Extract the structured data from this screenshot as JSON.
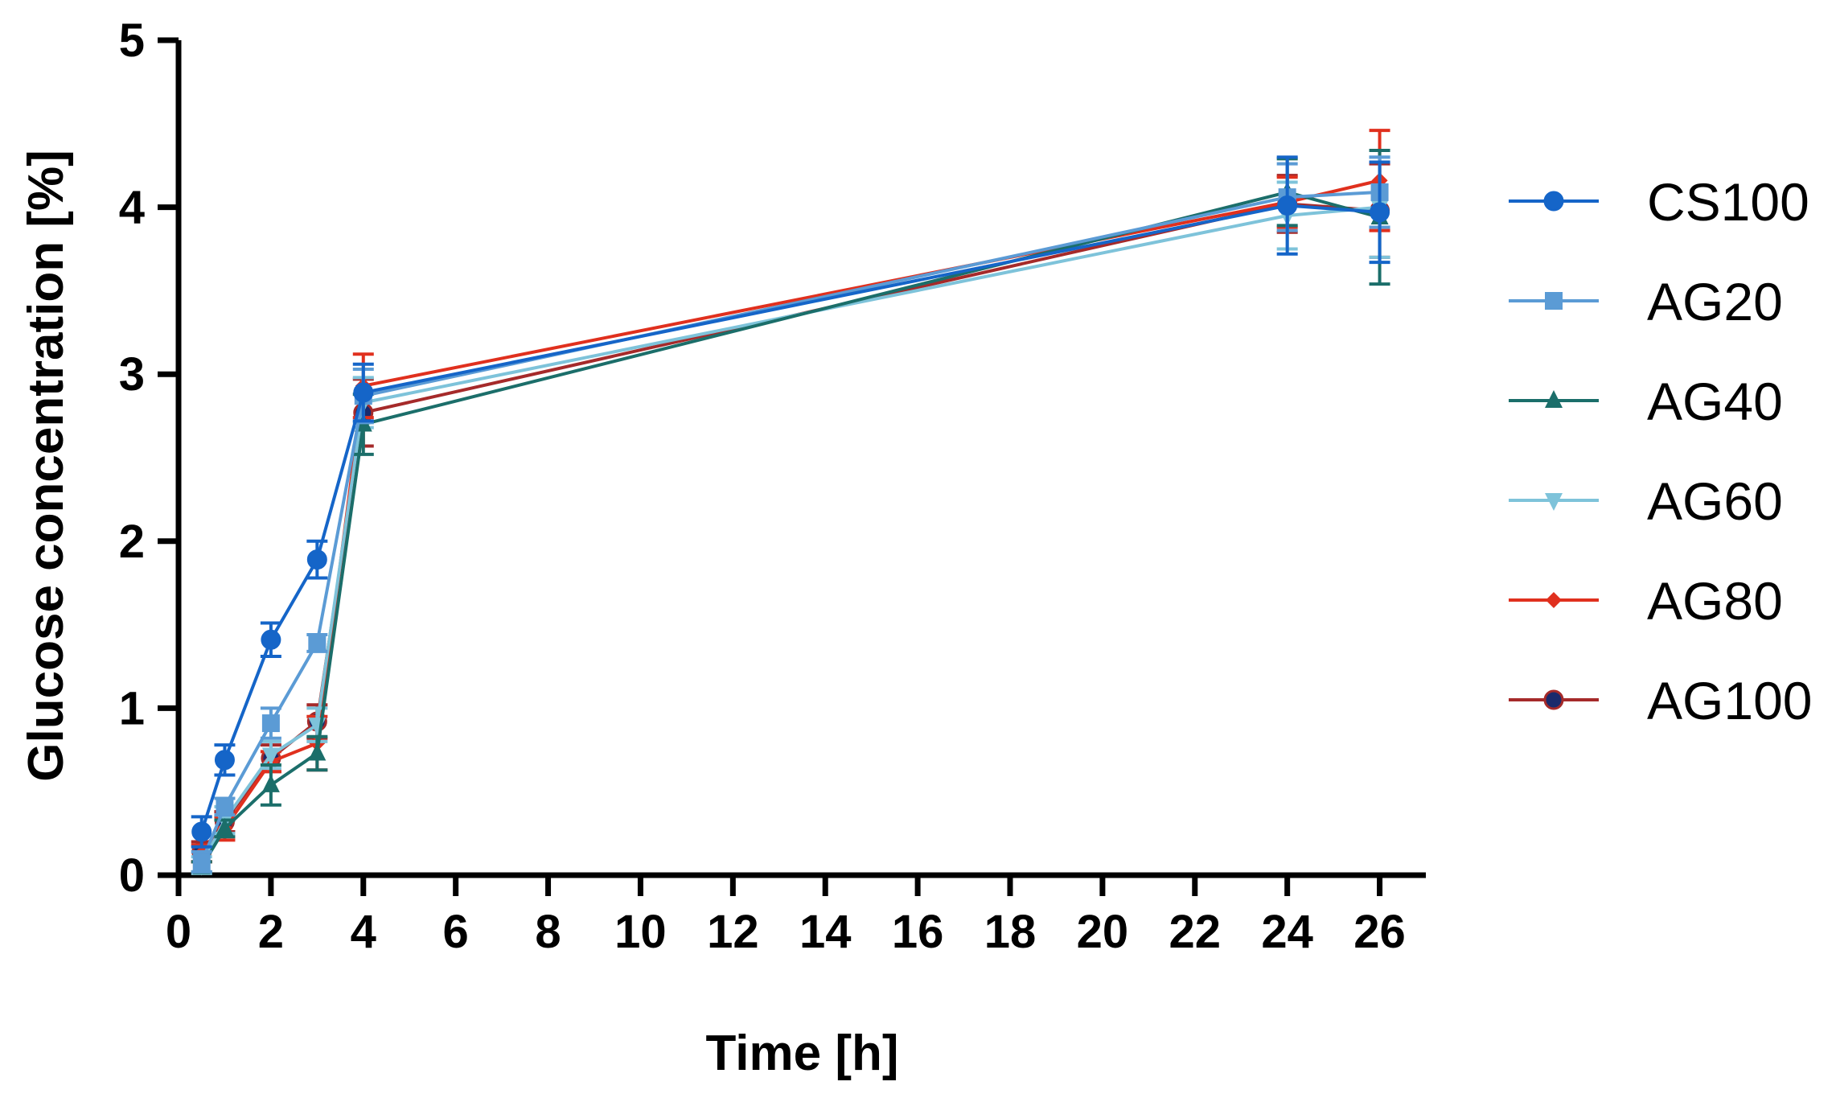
{
  "chart_data": {
    "type": "line",
    "title": "",
    "xlabel": "Time [h]",
    "ylabel": "Glucose concentration [%]",
    "xlim": [
      0,
      27
    ],
    "ylim": [
      0,
      5
    ],
    "xticks": [
      0,
      2,
      4,
      6,
      8,
      10,
      12,
      14,
      16,
      18,
      20,
      22,
      24,
      26
    ],
    "yticks": [
      0,
      1,
      2,
      3,
      4,
      5
    ],
    "x": [
      0.5,
      1,
      2,
      3,
      4,
      24,
      26
    ],
    "grid": false,
    "legend_position": "right",
    "series": [
      {
        "name": "CS100",
        "color": "#1565C8",
        "marker": "circle",
        "values": [
          0.26,
          0.69,
          1.41,
          1.89,
          2.89,
          4.01,
          3.97
        ],
        "errors": [
          0.09,
          0.09,
          0.1,
          0.11,
          0.17,
          0.29,
          0.3
        ]
      },
      {
        "name": "AG20",
        "color": "#5B9BD5",
        "marker": "square",
        "values": [
          0.08,
          0.41,
          0.91,
          1.39,
          2.87,
          4.06,
          4.09
        ],
        "errors": [
          0.06,
          0.05,
          0.09,
          0.05,
          0.16,
          0.2,
          0.21
        ]
      },
      {
        "name": "AG40",
        "color": "#1B6E6A",
        "marker": "triangle-up",
        "values": [
          0.05,
          0.28,
          0.54,
          0.73,
          2.7,
          4.09,
          3.94
        ],
        "errors": [
          0.03,
          0.05,
          0.12,
          0.1,
          0.18,
          0.2,
          0.4
        ]
      },
      {
        "name": "AG60",
        "color": "#7EC3DA",
        "marker": "triangle-down",
        "values": [
          0.06,
          0.33,
          0.72,
          0.9,
          2.83,
          3.95,
          4.0
        ],
        "errors": [
          0.05,
          0.08,
          0.08,
          0.1,
          0.15,
          0.2,
          0.3
        ]
      },
      {
        "name": "AG80",
        "color": "#E0301E",
        "marker": "diamond",
        "values": [
          0.13,
          0.28,
          0.68,
          0.79,
          2.93,
          4.03,
          4.16
        ],
        "errors": [
          0.05,
          0.07,
          0.06,
          0.16,
          0.19,
          0.15,
          0.3
        ]
      },
      {
        "name": "AG100",
        "color": "#A52A2A",
        "marker_fill": "#1A2A6C",
        "marker": "circle",
        "values": [
          0.14,
          0.32,
          0.7,
          0.92,
          2.77,
          4.02,
          3.98
        ],
        "errors": [
          0.06,
          0.06,
          0.08,
          0.1,
          0.2,
          0.17,
          0.28
        ]
      }
    ]
  }
}
